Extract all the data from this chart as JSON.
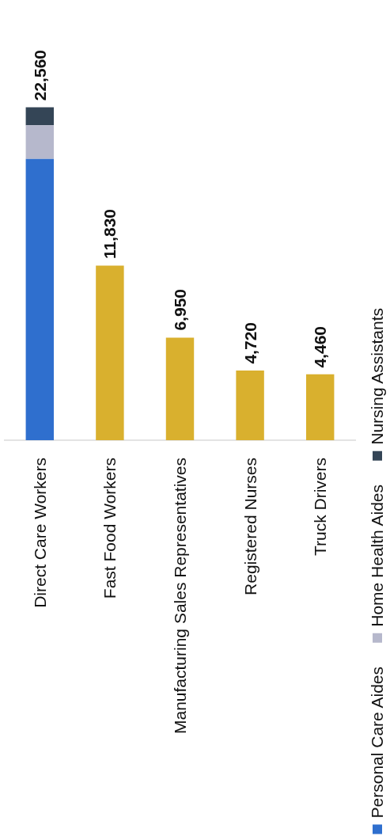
{
  "chart_data": {
    "type": "bar",
    "stacked": true,
    "categories": [
      "Direct Care Workers",
      "Fast Food Workers",
      "Manufacturing Sales Representatives",
      "Registered Nurses",
      "Truck Drivers"
    ],
    "series": [
      {
        "name": "Personal Care Aides",
        "color": "#2f6fce",
        "values": [
          19060,
          null,
          null,
          null,
          null
        ]
      },
      {
        "name": "Home Health Aides",
        "color": "#b6b8cc",
        "values": [
          2280,
          null,
          null,
          null,
          null
        ]
      },
      {
        "name": "Nursing Assistants",
        "color": "#344556",
        "values": [
          1220,
          null,
          null,
          null,
          null
        ]
      },
      {
        "color": "#d9b02e",
        "values": [
          null,
          11830,
          6950,
          4720,
          4460
        ],
        "value_labels": [
          null,
          "11,830",
          "6,950",
          "4,720",
          "4,460"
        ]
      }
    ],
    "totals": [
      "22,560",
      null,
      null,
      null,
      null
    ],
    "tick_labels": "x",
    "legend": "right"
  }
}
